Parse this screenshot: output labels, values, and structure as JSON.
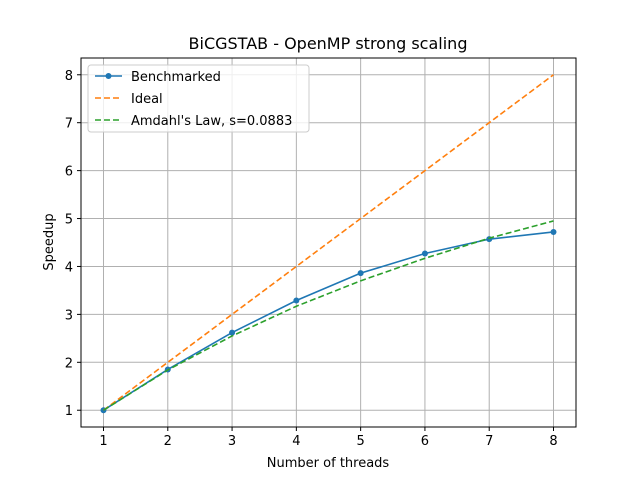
{
  "chart_data": {
    "type": "line",
    "title": "BiCGSTAB - OpenMP strong scaling",
    "xlabel": "Number of threads",
    "ylabel": "Speedup",
    "x": [
      1,
      2,
      3,
      4,
      5,
      6,
      7,
      8
    ],
    "xlim": [
      0.65,
      8.35
    ],
    "ylim": [
      0.65,
      8.35
    ],
    "xticks": [
      1,
      2,
      3,
      4,
      5,
      6,
      7,
      8
    ],
    "yticks": [
      1,
      2,
      3,
      4,
      5,
      6,
      7,
      8
    ],
    "grid": true,
    "legend_position": "top-left",
    "series": [
      {
        "name": "Benchmarked",
        "color": "#1f77b4",
        "style": "solid",
        "marker": "dot",
        "values": [
          1.0,
          1.85,
          2.62,
          3.29,
          3.86,
          4.27,
          4.57,
          4.72
        ]
      },
      {
        "name": "Ideal",
        "color": "#ff7f0e",
        "style": "dashed",
        "marker": "none",
        "values": [
          1,
          2,
          3,
          4,
          5,
          6,
          7,
          8
        ]
      },
      {
        "name": "Amdahl's Law, s=0.0883",
        "color": "#2ca02c",
        "style": "dashed",
        "marker": "none",
        "values": [
          1.0,
          1.84,
          2.55,
          3.17,
          3.7,
          4.17,
          4.59,
          4.95
        ]
      }
    ]
  }
}
